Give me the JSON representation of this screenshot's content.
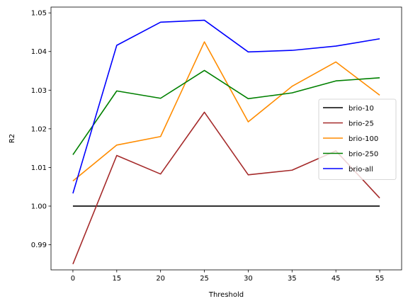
{
  "chart_data": {
    "type": "line",
    "title": "",
    "xlabel": "Threshold",
    "ylabel": "R2",
    "categories": [
      "0",
      "15",
      "20",
      "25",
      "30",
      "35",
      "45",
      "55"
    ],
    "ylim": [
      0.9835,
      1.0515
    ],
    "yticks": [
      "0.99",
      "1.00",
      "1.01",
      "1.02",
      "1.03",
      "1.04",
      "1.05"
    ],
    "grid": false,
    "legend_position": "center-right",
    "series": [
      {
        "name": "brio-10",
        "color": "#000000",
        "values": [
          1.0,
          1.0,
          1.0,
          1.0,
          1.0,
          1.0,
          1.0,
          1.0
        ]
      },
      {
        "name": "brio-25",
        "color": "#a52a2a",
        "values": [
          0.985,
          1.0131,
          1.0083,
          1.0243,
          1.0081,
          1.0093,
          1.0143,
          1.0021
        ]
      },
      {
        "name": "brio-100",
        "color": "#ff8c00",
        "values": [
          1.0065,
          1.0158,
          1.018,
          1.0425,
          1.0218,
          1.031,
          1.0373,
          1.0287
        ]
      },
      {
        "name": "brio-250",
        "color": "#008000",
        "values": [
          1.0133,
          1.0298,
          1.0279,
          1.0351,
          1.0278,
          1.0293,
          1.0324,
          1.0332
        ]
      },
      {
        "name": "brio-all",
        "color": "#0000ff",
        "values": [
          1.0033,
          1.0416,
          1.0476,
          1.0481,
          1.0399,
          1.0403,
          1.0414,
          1.0433
        ]
      }
    ]
  }
}
